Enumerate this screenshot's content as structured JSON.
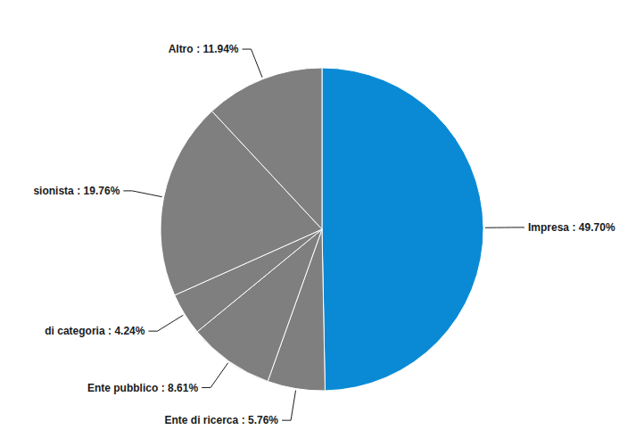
{
  "chart_data": {
    "type": "pie",
    "categories": [
      "Impresa",
      "Ente di ricerca",
      "Ente pubblico",
      "di categoria",
      "sionista",
      "Altro"
    ],
    "values": [
      49.7,
      5.76,
      8.61,
      4.24,
      19.76,
      11.94
    ],
    "value_labels": [
      ": 49.70%",
      ": 5.76%",
      ": 8.61%",
      ": 4.24%",
      ": 19.76%",
      ": 11.94%"
    ],
    "colors": [
      "#0a8ad5",
      "#7f7f7f",
      "#7f7f7f",
      "#7f7f7f",
      "#7f7f7f",
      "#7f7f7f"
    ]
  }
}
